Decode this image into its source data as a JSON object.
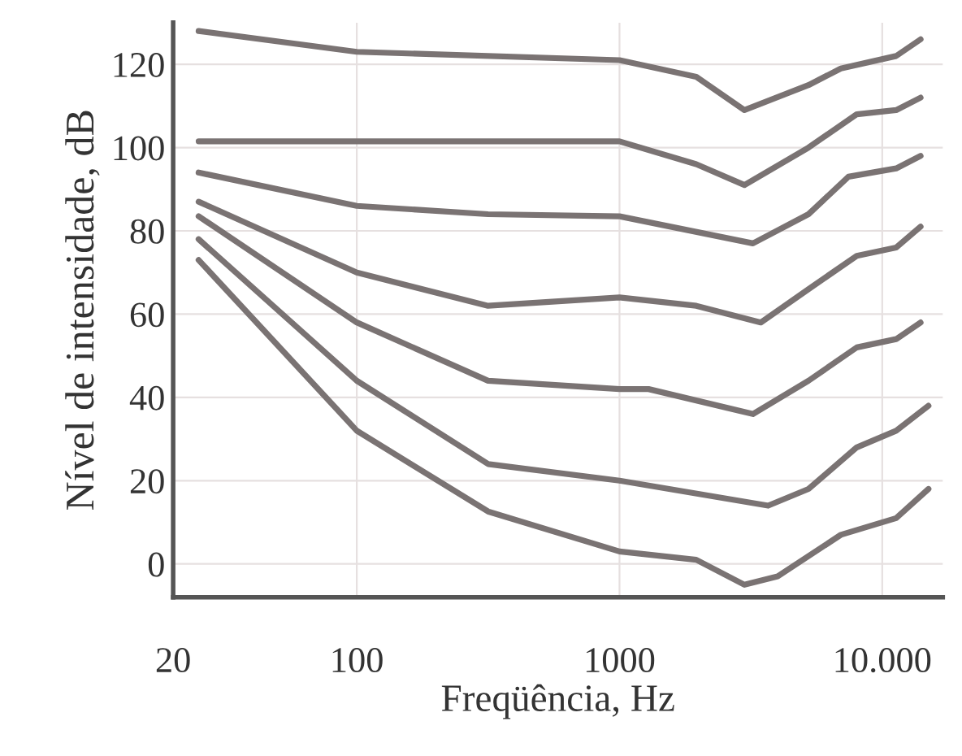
{
  "chart_data": {
    "type": "line",
    "xlabel": "Freqüência, Hz",
    "ylabel": "Nível de intensidade, dB",
    "log": "x",
    "grid": true,
    "marker": "none",
    "line_style": "solid",
    "xlim": [
      20,
      17000
    ],
    "xticks": [
      20,
      100,
      1000,
      {
        "value": 10000,
        "label": "10.000"
      }
    ],
    "ylim": [
      -8,
      130
    ],
    "yticks": [
      0,
      20,
      40,
      60,
      80,
      100,
      120
    ],
    "series": [
      {
        "color": "#7a7373",
        "x": [
          25,
          100,
          1000,
          1960,
          2990,
          5240,
          6960,
          11300,
          14000
        ],
        "values": [
          128,
          123,
          121,
          117,
          109,
          115,
          119,
          122,
          126
        ]
      },
      {
        "color": "#7a7373",
        "x": [
          25,
          100,
          1000,
          1960,
          2990,
          5240,
          8000,
          11300,
          14000
        ],
        "values": [
          101.5,
          101.5,
          101.5,
          96,
          91,
          100,
          108,
          109,
          112
        ]
      },
      {
        "color": "#7a7373",
        "x": [
          25,
          100,
          316,
          1000,
          3220,
          5240,
          7440,
          11300,
          14000
        ],
        "values": [
          94,
          86,
          84,
          83.5,
          77,
          84,
          93,
          95,
          98
        ]
      },
      {
        "color": "#7a7373",
        "x": [
          25,
          100,
          316,
          1000,
          1960,
          3450,
          5240,
          8000,
          11300,
          14000
        ],
        "values": [
          87,
          70,
          62,
          64,
          62,
          58,
          66,
          74,
          76,
          81
        ]
      },
      {
        "color": "#7a7373",
        "x": [
          25,
          100,
          316,
          1000,
          1290,
          3220,
          5240,
          8000,
          11300,
          14000
        ],
        "values": [
          83.5,
          58,
          44,
          42,
          42,
          36,
          44,
          52,
          54,
          58
        ]
      },
      {
        "color": "#7a7373",
        "x": [
          25,
          100,
          316,
          1000,
          3680,
          5240,
          8000,
          11300,
          15000
        ],
        "values": [
          78,
          44,
          24,
          20,
          14,
          18,
          28,
          32,
          38
        ]
      },
      {
        "color": "#7a7373",
        "x": [
          25,
          100,
          316,
          1000,
          1960,
          2990,
          4000,
          6960,
          11300,
          15000
        ],
        "values": [
          73,
          32,
          12.6,
          3,
          1,
          -5,
          -3,
          7,
          11,
          18
        ]
      }
    ]
  }
}
